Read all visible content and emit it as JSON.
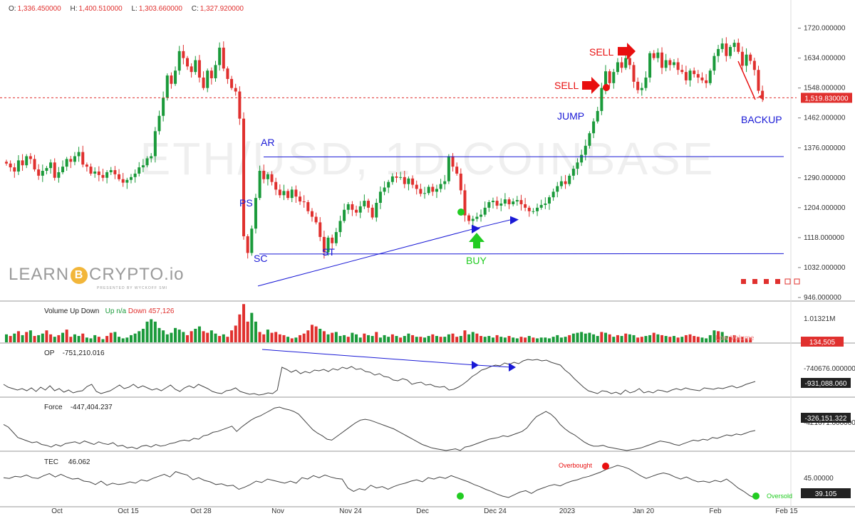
{
  "header": {
    "open_label": "O:",
    "open": "1,336.450000",
    "high_label": "H:",
    "high": "1,400.510000",
    "low_label": "L:",
    "low": "1,303.660000",
    "close_label": "C:",
    "close": "1,327.920000"
  },
  "watermark": "ETH/USD, 1D COINBASE",
  "logo": {
    "text_left": "LEARN",
    "coin_glyph": "B",
    "text_right": "CRYPTO.io",
    "tagline": "PRESENTED BY WYCKOFF SMI"
  },
  "colors": {
    "up": "#1a9a3a",
    "down": "#e0302e",
    "annotation": "#1a1ad6",
    "buy": "#22cc22",
    "sell": "#e80f0f"
  },
  "chart_data": [
    {
      "type": "candlestick",
      "title": "ETH/USD, 1D COINBASE",
      "ylim": [
        946,
        1760
      ],
      "y_ticks": [
        "1720.000000",
        "1634.000000",
        "1548.000000",
        "1462.000000",
        "1376.000000",
        "1290.000000",
        "1204.000000",
        "1118.000000",
        "1032.000000",
        "946.000000"
      ],
      "x_ticks": [
        "Oct",
        "Oct 15",
        "Oct 28",
        "Nov",
        "Nov 24",
        "Dec",
        "Dec 24",
        "2023",
        "Jan 20",
        "Feb",
        "Feb 15"
      ],
      "current_price_label": "1,519.830000",
      "current_price": 1519.83,
      "closes": [
        1331,
        1320,
        1308,
        1340,
        1326,
        1352,
        1344,
        1314,
        1296,
        1310,
        1318,
        1334,
        1290,
        1306,
        1322,
        1344,
        1336,
        1352,
        1364,
        1328,
        1322,
        1302,
        1308,
        1298,
        1290,
        1306,
        1312,
        1300,
        1286,
        1276,
        1284,
        1292,
        1302,
        1320,
        1326,
        1346,
        1352,
        1424,
        1468,
        1520,
        1584,
        1560,
        1598,
        1654,
        1634,
        1610,
        1594,
        1628,
        1578,
        1548,
        1598,
        1576,
        1614,
        1664,
        1604,
        1574,
        1548,
        1538,
        1460,
        1122,
        1074,
        1144,
        1232,
        1310,
        1286,
        1300,
        1278,
        1256,
        1240,
        1252,
        1232,
        1256,
        1236,
        1222,
        1220,
        1194,
        1178,
        1162,
        1120,
        1076,
        1118,
        1102,
        1134,
        1166,
        1198,
        1214,
        1198,
        1190,
        1208,
        1224,
        1204,
        1176,
        1218,
        1250,
        1262,
        1278,
        1294,
        1290,
        1292,
        1272,
        1288,
        1270,
        1258,
        1244,
        1246,
        1264,
        1250,
        1258,
        1272,
        1280,
        1352,
        1322,
        1302,
        1254,
        1182,
        1166,
        1172,
        1178,
        1184,
        1204,
        1220,
        1224,
        1210,
        1216,
        1228,
        1214,
        1222,
        1226,
        1214,
        1204,
        1194,
        1194,
        1204,
        1212,
        1216,
        1234,
        1250,
        1266,
        1280,
        1272,
        1296,
        1316,
        1334,
        1356,
        1382,
        1418,
        1452,
        1482,
        1548,
        1596,
        1562,
        1594,
        1622,
        1606,
        1634,
        1614,
        1566,
        1542,
        1548,
        1578,
        1648,
        1634,
        1650,
        1606,
        1628,
        1614,
        1622,
        1600,
        1594,
        1570,
        1598,
        1588,
        1578,
        1570,
        1562,
        1598,
        1640,
        1660,
        1676,
        1640,
        1666,
        1678,
        1652,
        1612,
        1644,
        1626,
        1600,
        1540,
        1522
      ]
    },
    {
      "type": "bar",
      "title": "Volume Up Down",
      "legend": {
        "up_label": "Up",
        "up_value": "n/a",
        "down_label": "Down",
        "down_value": "457,126"
      },
      "y_tick": "1.01321M",
      "last_value": "134,505",
      "faded_label": "Low Volume",
      "values": [
        20,
        16,
        22,
        28,
        18,
        26,
        30,
        16,
        18,
        22,
        30,
        20,
        14,
        18,
        24,
        32,
        14,
        20,
        16,
        22,
        12,
        10,
        18,
        14,
        8,
        16,
        24,
        26,
        14,
        10,
        12,
        18,
        22,
        28,
        34,
        52,
        58,
        52,
        36,
        30,
        20,
        24,
        36,
        32,
        26,
        18,
        28,
        34,
        40,
        28,
        24,
        30,
        22,
        16,
        20,
        14,
        30,
        42,
        70,
        96,
        52,
        74,
        52,
        26,
        20,
        32,
        24,
        26,
        20,
        18,
        14,
        10,
        12,
        18,
        22,
        30,
        44,
        40,
        34,
        28,
        20,
        24,
        26,
        16,
        18,
        14,
        24,
        20,
        12,
        22,
        18,
        16,
        26,
        12,
        18,
        14,
        20,
        16,
        12,
        16,
        22,
        18,
        14,
        14,
        12,
        16,
        20,
        16,
        14,
        14,
        20,
        22,
        14,
        16,
        30,
        20,
        26,
        22,
        16,
        14,
        16,
        12,
        18,
        14,
        12,
        16,
        12,
        10,
        14,
        12,
        16,
        12,
        10,
        12,
        12,
        10,
        14,
        18,
        12,
        14,
        18,
        22,
        24,
        26,
        22,
        24,
        20,
        16,
        26,
        24,
        20,
        14,
        18,
        16,
        22,
        20,
        18,
        12,
        14,
        16,
        18,
        24,
        20,
        18,
        16,
        14,
        16,
        12,
        14,
        18,
        20,
        16,
        14,
        12,
        10,
        18,
        30,
        28,
        26,
        16,
        14,
        18,
        12,
        14,
        10,
        12
      ],
      "dirs": [
        1,
        0,
        1,
        0,
        1,
        0,
        1,
        0,
        1,
        1,
        0,
        0,
        1,
        0,
        1,
        0,
        0,
        1,
        1,
        0,
        1,
        1,
        1,
        0,
        1,
        0,
        0,
        1,
        1,
        1,
        1,
        1,
        1,
        1,
        1,
        1,
        1,
        1,
        1,
        1,
        1,
        1,
        1,
        1,
        1,
        0,
        0,
        1,
        1,
        0,
        0,
        1,
        1,
        0,
        1,
        0,
        0,
        0,
        0,
        0,
        0,
        1,
        1,
        0,
        0,
        1,
        0,
        0,
        0,
        0,
        1,
        0,
        1,
        0,
        0,
        0,
        0,
        0,
        1,
        0,
        1,
        0,
        1,
        1,
        1,
        0,
        1,
        1,
        1,
        0,
        1,
        1,
        0,
        1,
        1,
        1,
        0,
        1,
        0,
        1,
        1,
        0,
        1,
        0,
        1,
        1,
        0,
        1,
        0,
        1,
        1,
        0,
        0,
        1,
        0,
        1,
        1,
        0,
        0,
        1,
        1,
        1,
        0,
        1,
        1,
        0,
        1,
        1,
        0,
        0,
        1,
        0,
        1,
        1,
        1,
        1,
        1,
        1,
        1,
        1,
        0,
        1,
        1,
        1,
        1,
        1,
        1,
        1,
        0,
        1,
        0,
        1,
        0,
        1,
        0,
        1,
        1,
        0,
        0,
        1,
        1,
        0,
        1,
        0,
        1,
        0,
        1,
        0,
        1,
        0,
        0,
        0,
        0,
        1,
        1,
        1,
        1,
        0,
        1,
        1,
        0,
        0,
        0,
        0,
        0,
        0
      ]
    },
    {
      "type": "line",
      "title": "OP",
      "value_label": "-751,210.016",
      "y_ticks": [
        "-740676.000000"
      ],
      "last_label": "-931,088.060",
      "values": [
        0.3,
        0.22,
        0.18,
        0.14,
        0.18,
        0.12,
        0.2,
        0.1,
        0.22,
        0.14,
        0.26,
        0.12,
        0.18,
        0.08,
        0.14,
        0.06,
        0.1,
        0.12,
        0.24,
        0.3,
        0.1,
        0.04,
        0.08,
        0.12,
        0.2,
        0.28,
        0.18,
        0.22,
        0.3,
        0.2,
        0.26,
        0.2,
        0.14,
        0.18,
        0.12,
        0.2,
        0.28,
        0.16,
        0.1,
        0.2,
        0.26,
        0.2,
        0.3,
        0.24,
        0.18,
        0.1,
        0.06,
        0.04,
        0.12,
        0.14,
        0.2,
        0.1,
        0.06,
        0.02,
        0.04,
        0.0,
        0.02,
        0.06,
        0.04,
        0.14,
        0.78,
        0.72,
        0.64,
        0.7,
        0.6,
        0.66,
        0.62,
        0.7,
        0.68,
        0.72,
        0.66,
        0.74,
        0.7,
        0.78,
        0.74,
        0.8,
        0.72,
        0.74,
        0.66,
        0.64,
        0.56,
        0.6,
        0.52,
        0.5,
        0.42,
        0.4,
        0.46,
        0.42,
        0.3,
        0.34,
        0.36,
        0.28,
        0.3,
        0.24,
        0.22,
        0.24,
        0.14,
        0.16,
        0.22,
        0.3,
        0.4,
        0.52,
        0.6,
        0.7,
        0.74,
        0.8,
        0.84,
        0.82,
        0.9,
        0.86,
        0.92,
        0.88,
        0.96,
        1.0,
        0.98,
        1.0,
        0.96,
        0.98,
        0.92,
        0.88,
        0.84,
        0.7,
        0.6,
        0.46,
        0.34,
        0.22,
        0.12,
        0.08,
        0.04,
        0.12,
        0.1,
        0.04,
        0.08,
        0.02,
        0.14,
        0.06,
        0.1,
        0.18,
        0.06,
        0.1,
        0.06,
        0.14,
        0.12,
        0.08,
        0.14,
        0.18,
        0.14,
        0.2,
        0.16,
        0.14,
        0.12,
        0.2,
        0.18,
        0.16,
        0.2,
        0.18,
        0.22,
        0.26,
        0.2,
        0.24,
        0.3,
        0.34,
        0.38
      ]
    },
    {
      "type": "line",
      "title": "Force",
      "value_label": "-447,404.237",
      "y_ticks": [
        "-421671.000000"
      ],
      "last_label": "-326,151.322",
      "values": [
        0.6,
        0.54,
        0.42,
        0.3,
        0.26,
        0.22,
        0.18,
        0.2,
        0.14,
        0.12,
        0.08,
        0.14,
        0.1,
        0.16,
        0.18,
        0.2,
        0.16,
        0.22,
        0.18,
        0.14,
        0.2,
        0.16,
        0.14,
        0.18,
        0.1,
        0.12,
        0.06,
        0.08,
        0.04,
        0.1,
        0.12,
        0.08,
        0.14,
        0.1,
        0.12,
        0.16,
        0.18,
        0.22,
        0.24,
        0.22,
        0.28,
        0.26,
        0.34,
        0.36,
        0.42,
        0.44,
        0.48,
        0.52,
        0.56,
        0.44,
        0.54,
        0.62,
        0.7,
        0.76,
        0.8,
        0.86,
        0.92,
        0.98,
        1.0,
        0.96,
        0.94,
        0.9,
        0.84,
        0.72,
        0.6,
        0.48,
        0.4,
        0.34,
        0.26,
        0.24,
        0.32,
        0.4,
        0.48,
        0.56,
        0.64,
        0.7,
        0.72,
        0.7,
        0.66,
        0.62,
        0.58,
        0.54,
        0.5,
        0.44,
        0.38,
        0.32,
        0.26,
        0.2,
        0.14,
        0.1,
        0.06,
        0.04,
        0.02,
        0.0,
        0.02,
        0.04,
        0.0,
        0.08,
        0.1,
        0.14,
        0.18,
        0.22,
        0.26,
        0.28,
        0.3,
        0.34,
        0.32,
        0.36,
        0.4,
        0.44,
        0.52,
        0.66,
        0.78,
        0.84,
        0.9,
        0.84,
        0.74,
        0.6,
        0.5,
        0.42,
        0.36,
        0.28,
        0.2,
        0.14,
        0.1,
        0.1,
        0.12,
        0.08,
        0.06,
        0.04,
        0.02,
        0.0,
        0.02,
        0.04,
        0.06,
        0.1,
        0.14,
        0.18,
        0.22,
        0.2,
        0.18,
        0.14,
        0.12,
        0.16,
        0.2,
        0.24,
        0.22,
        0.26,
        0.24,
        0.3,
        0.28,
        0.32,
        0.36,
        0.34,
        0.38,
        0.36,
        0.4,
        0.44,
        0.46
      ]
    },
    {
      "type": "line",
      "title": "TEC",
      "value_label": "46.062",
      "y_ticks": [
        "45.00000"
      ],
      "last_label": "39.105",
      "markers": [
        {
          "label": "Overbought",
          "value": 0.96
        },
        {
          "label": "Oversold",
          "value": 0.0
        }
      ],
      "values": [
        0.6,
        0.58,
        0.64,
        0.62,
        0.68,
        0.6,
        0.58,
        0.66,
        0.72,
        0.62,
        0.7,
        0.62,
        0.56,
        0.58,
        0.5,
        0.48,
        0.4,
        0.5,
        0.38,
        0.44,
        0.4,
        0.42,
        0.48,
        0.44,
        0.54,
        0.5,
        0.58,
        0.64,
        0.7,
        0.62,
        0.78,
        0.72,
        0.68,
        0.54,
        0.6,
        0.52,
        0.48,
        0.4,
        0.42,
        0.36,
        0.38,
        0.26,
        0.32,
        0.4,
        0.5,
        0.46,
        0.56,
        0.52,
        0.48,
        0.44,
        0.5,
        0.44,
        0.6,
        0.56,
        0.66,
        0.6,
        0.68,
        0.62,
        0.58,
        0.56,
        0.3,
        0.2,
        0.28,
        0.24,
        0.38,
        0.3,
        0.34,
        0.26,
        0.34,
        0.4,
        0.44,
        0.5,
        0.54,
        0.48,
        0.6,
        0.56,
        0.62,
        0.58,
        0.66,
        0.6,
        0.54,
        0.48,
        0.4,
        0.34,
        0.26,
        0.2,
        0.12,
        0.06,
        0.02,
        0.1,
        0.18,
        0.22,
        0.14,
        0.24,
        0.3,
        0.36,
        0.4,
        0.36,
        0.44,
        0.5,
        0.54,
        0.6,
        0.64,
        0.7,
        0.76,
        0.84,
        0.9,
        0.96,
        0.92,
        0.86,
        0.76,
        0.66,
        0.58,
        0.64,
        0.7,
        0.74,
        0.7,
        0.62,
        0.56,
        0.62,
        0.54,
        0.48,
        0.5,
        0.46,
        0.52,
        0.48,
        0.56,
        0.44,
        0.3,
        0.2,
        0.08,
        0.0
      ]
    }
  ],
  "annotations": {
    "PS": "PS",
    "SC": "SC",
    "AR": "AR",
    "ST": "ST",
    "BUY": "BUY",
    "SELL": "SELL",
    "JUMP": "JUMP",
    "BACKUP": "BACKUP"
  }
}
